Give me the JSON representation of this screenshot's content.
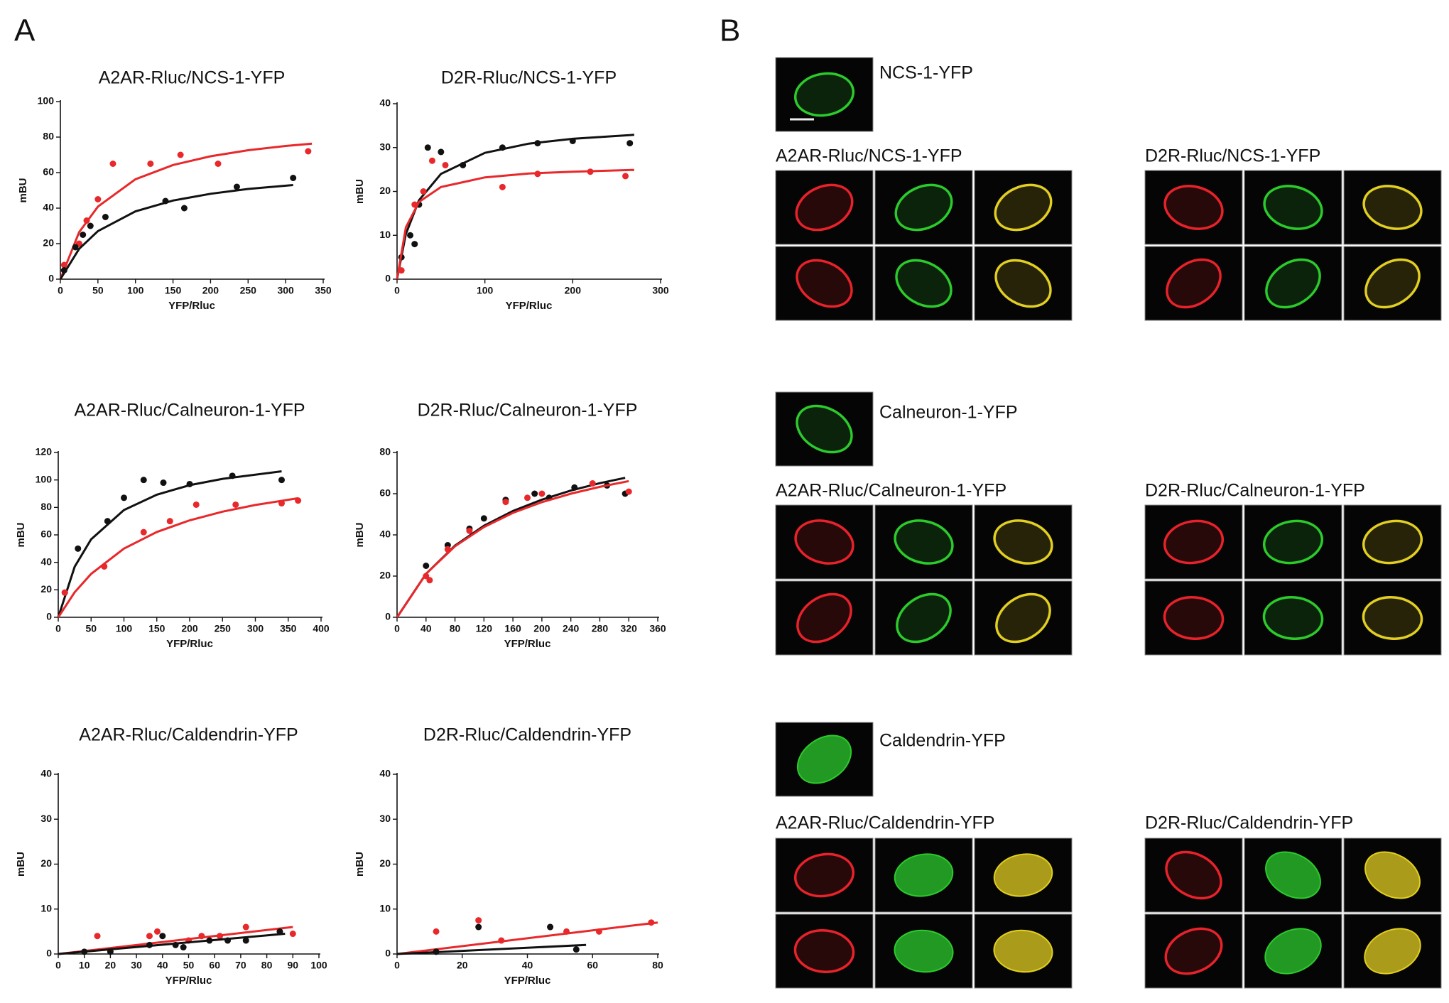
{
  "panels": [
    "A",
    "B"
  ],
  "chart_data": [
    {
      "type": "scatter",
      "title": "A2AR-Rluc/NCS-1-YFP",
      "x_label": "YFP/Rluc",
      "y_label": "mBU",
      "xlim": [
        0,
        350
      ],
      "xticks": [
        0,
        50,
        100,
        150,
        200,
        250,
        300,
        350
      ],
      "ylim": [
        0,
        100
      ],
      "yticks": [
        0,
        20,
        40,
        60,
        80,
        100
      ],
      "grid": false,
      "series": [
        {
          "kind": "points",
          "color": "#e8282a",
          "x": [
            5,
            25,
            35,
            50,
            70,
            120,
            160,
            210,
            330
          ],
          "values": [
            8,
            20,
            33,
            45,
            65,
            65,
            70,
            65,
            72
          ]
        },
        {
          "kind": "fit",
          "color": "#e8282a",
          "x": [
            0,
            25,
            50,
            100,
            150,
            200,
            250,
            300,
            335
          ],
          "values": [
            0,
            26.5,
            40.9,
            56.3,
            64.3,
            69.2,
            72.6,
            75,
            76.3
          ]
        },
        {
          "kind": "points",
          "color": "#111111",
          "x": [
            5,
            20,
            30,
            40,
            60,
            140,
            165,
            235,
            310
          ],
          "values": [
            5,
            18,
            25,
            30,
            35,
            44,
            40,
            52,
            57
          ]
        },
        {
          "kind": "fit",
          "color": "#111111",
          "x": [
            0,
            25,
            50,
            100,
            150,
            200,
            250,
            310
          ],
          "values": [
            0,
            17.1,
            27.1,
            38.2,
            44.3,
            48.1,
            50.8,
            53
          ]
        }
      ]
    },
    {
      "type": "scatter",
      "title": "D2R-Rluc/NCS-1-YFP",
      "x_label": "YFP/Rluc",
      "y_label": "mBU",
      "xlim": [
        0,
        300
      ],
      "xticks": [
        0,
        100,
        200,
        300
      ],
      "ylim": [
        0,
        40
      ],
      "yticks": [
        0,
        10,
        20,
        30,
        40
      ],
      "grid": false,
      "series": [
        {
          "kind": "points",
          "color": "#111111",
          "x": [
            5,
            15,
            20,
            25,
            35,
            50,
            75,
            120,
            160,
            200,
            265
          ],
          "values": [
            5,
            10,
            8,
            17,
            30,
            29,
            26,
            30,
            31,
            31.5,
            31
          ]
        },
        {
          "kind": "fit",
          "color": "#111111",
          "x": [
            0,
            10,
            25,
            50,
            100,
            150,
            200,
            270
          ],
          "values": [
            0,
            10.3,
            18,
            24,
            28.8,
            30.9,
            32,
            32.9
          ]
        },
        {
          "kind": "points",
          "color": "#e8282a",
          "x": [
            5,
            20,
            30,
            40,
            55,
            120,
            160,
            220,
            260
          ],
          "values": [
            2,
            17,
            20,
            27,
            26,
            21,
            24,
            24.5,
            23.5
          ]
        },
        {
          "kind": "fit",
          "color": "#e8282a",
          "x": [
            0,
            10,
            25,
            50,
            100,
            150,
            200,
            270
          ],
          "values": [
            0,
            11.8,
            17.6,
            21,
            23.2,
            24.1,
            24.5,
            24.9
          ]
        }
      ]
    },
    {
      "type": "scatter",
      "title": "A2AR-Rluc/Calneuron-1-YFP",
      "x_label": "YFP/Rluc",
      "y_label": "mBU",
      "xlim": [
        0,
        400
      ],
      "xticks": [
        0,
        50,
        100,
        150,
        200,
        250,
        300,
        350,
        400
      ],
      "ylim": [
        0,
        120
      ],
      "yticks": [
        0,
        20,
        40,
        60,
        80,
        100,
        120
      ],
      "grid": false,
      "series": [
        {
          "kind": "points",
          "color": "#111111",
          "x": [
            10,
            30,
            75,
            100,
            130,
            160,
            200,
            265,
            340
          ],
          "values": [
            18,
            50,
            70,
            87,
            100,
            98,
            97,
            103,
            100
          ]
        },
        {
          "kind": "fit",
          "color": "#111111",
          "x": [
            0,
            25,
            50,
            100,
            150,
            200,
            250,
            340
          ],
          "values": [
            0,
            36.8,
            56.8,
            78.1,
            89.3,
            96.2,
            100.8,
            106.3
          ]
        },
        {
          "kind": "points",
          "color": "#e8282a",
          "x": [
            10,
            70,
            130,
            170,
            210,
            270,
            340,
            365
          ],
          "values": [
            18,
            37,
            62,
            70,
            82,
            82,
            83,
            85
          ]
        },
        {
          "kind": "fit",
          "color": "#e8282a",
          "x": [
            0,
            25,
            50,
            100,
            150,
            200,
            250,
            300,
            365
          ],
          "values": [
            0,
            18.2,
            31.6,
            50,
            62.1,
            70.6,
            76.9,
            81.8,
            86.7
          ]
        }
      ]
    },
    {
      "type": "scatter",
      "title": "D2R-Rluc/Calneuron-1-YFP",
      "x_label": "YFP/Rluc",
      "y_label": "mBU",
      "xlim": [
        0,
        360
      ],
      "xticks": [
        0,
        40,
        80,
        120,
        160,
        200,
        240,
        280,
        320,
        360
      ],
      "ylim": [
        0,
        80
      ],
      "yticks": [
        0,
        20,
        40,
        60,
        80
      ],
      "grid": false,
      "series": [
        {
          "kind": "points",
          "color": "#111111",
          "x": [
            40,
            70,
            100,
            120,
            150,
            190,
            210,
            245,
            290,
            315
          ],
          "values": [
            25,
            35,
            43,
            48,
            57,
            60,
            58,
            63,
            64,
            60
          ]
        },
        {
          "kind": "fit",
          "color": "#111111",
          "x": [
            0,
            40,
            80,
            120,
            160,
            200,
            240,
            280,
            315
          ],
          "values": [
            0,
            21.1,
            34.8,
            44.4,
            51.6,
            57.1,
            61.5,
            65.1,
            67.7
          ]
        },
        {
          "kind": "points",
          "color": "#e8282a",
          "x": [
            40,
            45,
            70,
            100,
            150,
            180,
            200,
            270,
            320
          ],
          "values": [
            20,
            18,
            33,
            42,
            56,
            58,
            60,
            65,
            61
          ]
        },
        {
          "kind": "fit",
          "color": "#e8282a",
          "x": [
            0,
            40,
            80,
            120,
            160,
            200,
            240,
            280,
            320
          ],
          "values": [
            0,
            21.1,
            34.5,
            43.8,
            50.7,
            55.9,
            60,
            63.3,
            66.1
          ]
        }
      ]
    },
    {
      "type": "scatter",
      "title": "A2AR-Rluc/Caldendrin-YFP",
      "x_label": "YFP/Rluc",
      "y_label": "mBU",
      "xlim": [
        0,
        100
      ],
      "xticks": [
        0,
        10,
        20,
        30,
        40,
        50,
        60,
        70,
        80,
        90,
        100
      ],
      "ylim": [
        0,
        40
      ],
      "yticks": [
        0,
        10,
        20,
        30,
        40
      ],
      "grid": false,
      "series": [
        {
          "kind": "points",
          "color": "#e8282a",
          "x": [
            15,
            35,
            38,
            50,
            55,
            62,
            72,
            85,
            90
          ],
          "values": [
            4,
            4,
            5,
            3,
            4,
            4,
            6,
            5,
            4.5
          ]
        },
        {
          "kind": "fit",
          "color": "#e8282a",
          "x": [
            0,
            90
          ],
          "values": [
            0,
            6
          ]
        },
        {
          "kind": "points",
          "color": "#111111",
          "x": [
            10,
            20,
            35,
            40,
            45,
            48,
            58,
            65,
            72,
            85
          ],
          "values": [
            0.5,
            0.5,
            2,
            4,
            2,
            1.5,
            3,
            3,
            3,
            5
          ]
        },
        {
          "kind": "fit",
          "color": "#111111",
          "x": [
            0,
            87
          ],
          "values": [
            0,
            4.5
          ]
        }
      ]
    },
    {
      "type": "scatter",
      "title": "D2R-Rluc/Caldendrin-YFP",
      "x_label": "YFP/Rluc",
      "y_label": "mBU",
      "xlim": [
        0,
        80
      ],
      "xticks": [
        0,
        20,
        40,
        60,
        80
      ],
      "ylim": [
        0,
        40
      ],
      "yticks": [
        0,
        10,
        20,
        30,
        40
      ],
      "grid": false,
      "series": [
        {
          "kind": "points",
          "color": "#e8282a",
          "x": [
            12,
            25,
            32,
            47,
            52,
            62,
            78
          ],
          "values": [
            5,
            7.5,
            3,
            6,
            5,
            5,
            7
          ]
        },
        {
          "kind": "fit",
          "color": "#e8282a",
          "x": [
            0,
            80
          ],
          "values": [
            0,
            7
          ]
        },
        {
          "kind": "points",
          "color": "#111111",
          "x": [
            12,
            25,
            47,
            55
          ],
          "values": [
            0.5,
            6,
            6,
            1
          ]
        },
        {
          "kind": "fit",
          "color": "#111111",
          "x": [
            0,
            58
          ],
          "values": [
            0,
            2
          ]
        }
      ]
    }
  ],
  "panel_b": {
    "groups": [
      {
        "protein": "NCS-1-YFP",
        "pairs": [
          "A2AR-Rluc/NCS-1-YFP",
          "D2R-Rluc/NCS-1-YFP"
        ],
        "filled": false
      },
      {
        "protein": "Calneuron-1-YFP",
        "pairs": [
          "A2AR-Rluc/Calneuron-1-YFP",
          "D2R-Rluc/Calneuron-1-YFP"
        ],
        "filled": false
      },
      {
        "protein": "Caldendrin-YFP",
        "pairs": [
          "A2AR-Rluc/Caldendrin-YFP",
          "D2R-Rluc/Caldendrin-YFP"
        ],
        "filled": true
      }
    ]
  }
}
